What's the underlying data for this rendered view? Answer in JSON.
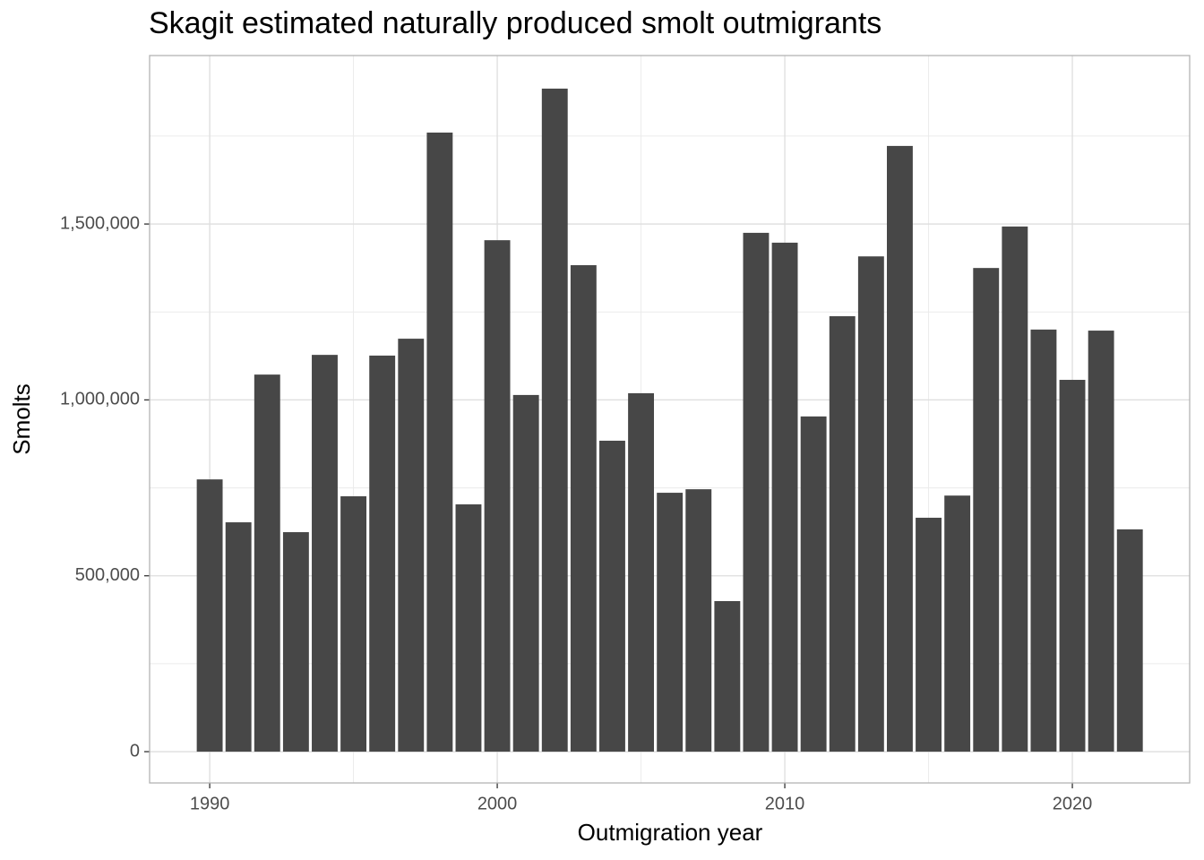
{
  "chart_data": {
    "type": "bar",
    "title": "Skagit estimated naturally produced smolt outmigrants",
    "x_label": "Outmigration year",
    "y_label": "Smolts",
    "x": [
      1990,
      1991,
      1992,
      1993,
      1994,
      1995,
      1996,
      1997,
      1998,
      1999,
      2000,
      2001,
      2002,
      2003,
      2004,
      2005,
      2006,
      2007,
      2008,
      2009,
      2010,
      2011,
      2012,
      2013,
      2014,
      2015,
      2016,
      2017,
      2018,
      2019,
      2020,
      2021,
      2022
    ],
    "values": [
      774000,
      652000,
      1072000,
      624000,
      1128000,
      726000,
      1126000,
      1174000,
      1760000,
      703000,
      1454000,
      1014000,
      1885000,
      1383000,
      884000,
      1019000,
      736000,
      746000,
      428000,
      1475000,
      1447000,
      953000,
      1238000,
      1408000,
      1722000,
      665000,
      728000,
      1375000,
      1493000,
      1200000,
      1057000,
      1197000,
      632000
    ],
    "color": "#474747",
    "xlim": [
      1987.91,
      2024.08
    ],
    "xticks": [
      1990,
      2000,
      2010,
      2020
    ],
    "ylim": [
      -89000,
      1979000
    ],
    "yticks": [
      0,
      {
        "value": 500000,
        "label": "500,000"
      },
      {
        "value": 1000000,
        "label": "1,000,000"
      },
      {
        "value": 1500000,
        "label": "1,500,000"
      }
    ],
    "grid": true,
    "minor_grid": true
  }
}
